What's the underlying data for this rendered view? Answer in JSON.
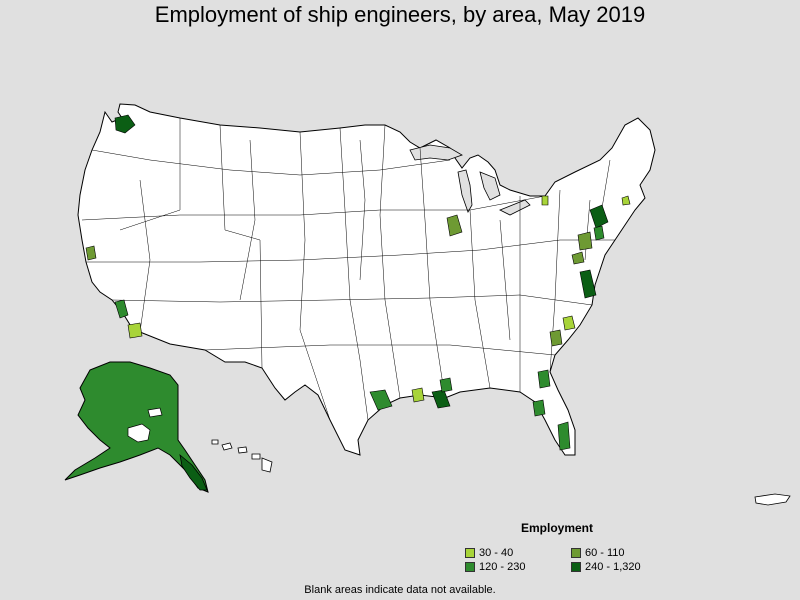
{
  "title": "Employment of ship engineers, by area, May 2019",
  "legend": {
    "title": "Employment",
    "items": [
      {
        "label": "30 - 40",
        "color": "#a8d439"
      },
      {
        "label": "60 - 110",
        "color": "#6e9a33"
      },
      {
        "label": "120 - 230",
        "color": "#2e8b2e"
      },
      {
        "label": "240 - 1,320",
        "color": "#0b5e14"
      }
    ]
  },
  "footnote": "Blank areas indicate data not available.",
  "colors": {
    "background": "#e0e0e0",
    "land": "#ffffff",
    "border": "#000000"
  }
}
